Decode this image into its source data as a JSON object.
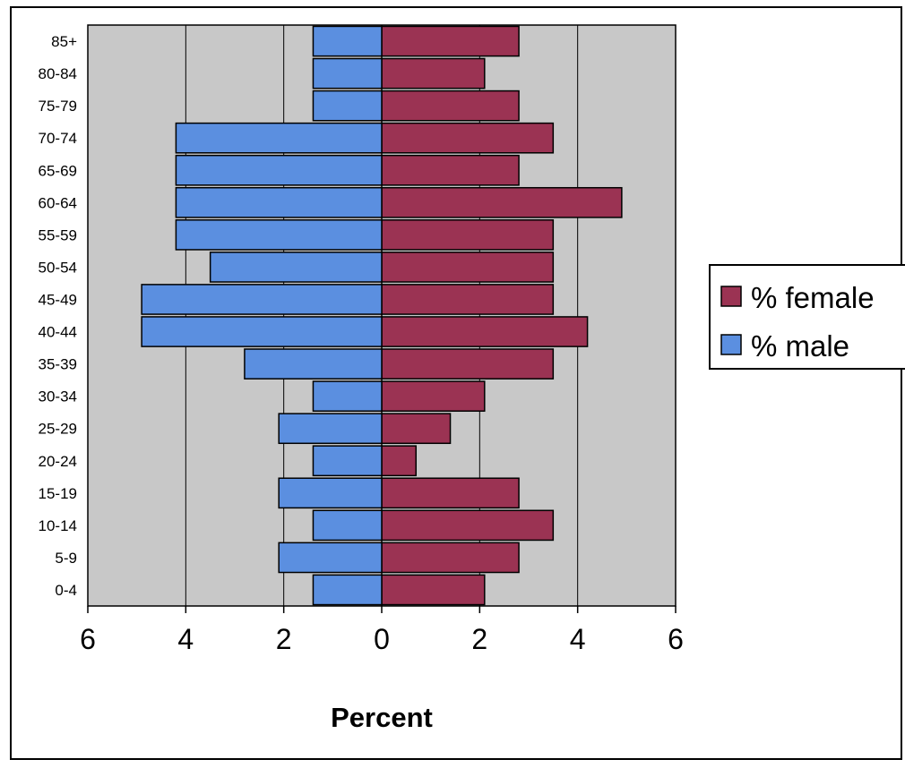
{
  "chart_data": {
    "type": "bar",
    "orientation": "horizontal",
    "title": "",
    "xlabel": "Percent",
    "ylabel": "",
    "xlim": [
      -6,
      6
    ],
    "x_ticks": [
      -6,
      -4,
      -2,
      0,
      2,
      4,
      6
    ],
    "x_tick_labels": [
      "6",
      "4",
      "2",
      "0",
      "2",
      "4",
      "6"
    ],
    "grid": "vertical gridlines at each tick",
    "legend_position": "right",
    "categories": [
      "85+",
      "80-84",
      "75-79",
      "70-74",
      "65-69",
      "60-64",
      "55-59",
      "50-54",
      "45-49",
      "40-44",
      "35-39",
      "30-34",
      "25-29",
      "20-24",
      "15-19",
      "10-14",
      "5-9",
      "0-4"
    ],
    "series": [
      {
        "name": "% female",
        "color": "#9b3353",
        "values": [
          2.8,
          2.1,
          2.8,
          3.5,
          2.8,
          4.9,
          3.5,
          3.5,
          3.5,
          4.2,
          3.5,
          2.1,
          1.4,
          0.7,
          2.8,
          3.5,
          2.8,
          2.1
        ]
      },
      {
        "name": "% male",
        "color": "#5b8fe0",
        "values": [
          1.4,
          1.4,
          1.4,
          4.2,
          4.2,
          4.2,
          4.2,
          3.5,
          4.9,
          4.9,
          2.8,
          1.4,
          2.1,
          1.4,
          2.1,
          1.4,
          2.1,
          1.4
        ]
      }
    ],
    "colors": {
      "plot_background": "#c8c8c8",
      "gridline": "#000000",
      "female": "#9b3353",
      "male": "#5b8fe0"
    }
  }
}
